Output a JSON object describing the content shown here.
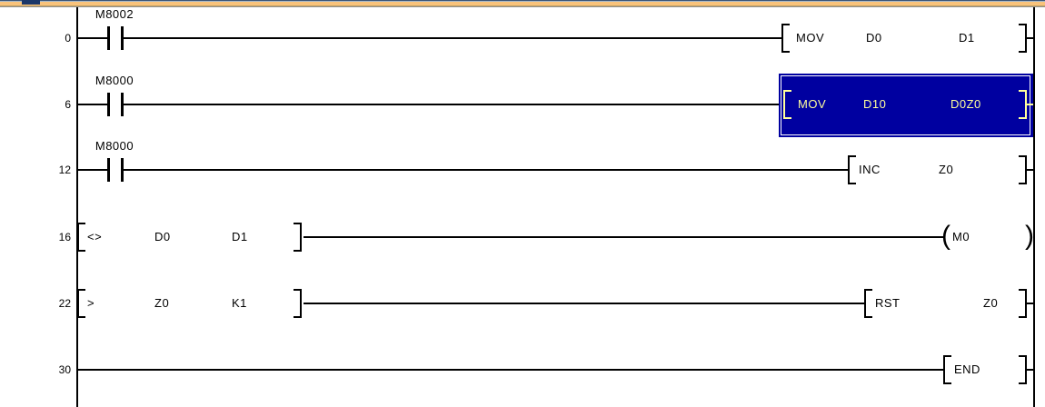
{
  "window": {
    "titlebar_fragment": {
      "accent_color": "#F9C37B",
      "top_edge_color": "#3A5578",
      "icon": "window-icon-fragment",
      "icon_color": "#1B3769"
    }
  },
  "ladder": {
    "colors": {
      "wire": "#000000",
      "background": "#FFFFFF",
      "selection_bg": "#0000A0",
      "selection_text": "#FFFF9C",
      "selection_border": "#FFFFFF"
    },
    "rungs": [
      {
        "step": "0",
        "contact": {
          "label": "M8002",
          "type": "normally-open"
        },
        "instruction": {
          "mnemonic": "MOV",
          "operands": [
            "D0",
            "D1"
          ]
        },
        "highlighted": false
      },
      {
        "step": "6",
        "contact": {
          "label": "M8000",
          "type": "normally-open"
        },
        "instruction": {
          "mnemonic": "MOV",
          "operands": [
            "D10",
            "D0Z0"
          ]
        },
        "highlighted": true
      },
      {
        "step": "12",
        "contact": {
          "label": "M8000",
          "type": "normally-open"
        },
        "instruction": {
          "mnemonic": "INC",
          "operands": [
            "Z0"
          ]
        },
        "highlighted": false
      },
      {
        "step": "16",
        "compare": {
          "operator": "<>",
          "operands": [
            "D0",
            "D1"
          ]
        },
        "coil": {
          "label": "M0"
        },
        "highlighted": false
      },
      {
        "step": "22",
        "compare": {
          "operator": ">",
          "operands": [
            "Z0",
            "K1"
          ]
        },
        "instruction": {
          "mnemonic": "RST",
          "operands": [
            "Z0"
          ]
        },
        "highlighted": false
      },
      {
        "step": "30",
        "instruction": {
          "mnemonic": "END",
          "operands": []
        },
        "highlighted": false
      }
    ]
  }
}
